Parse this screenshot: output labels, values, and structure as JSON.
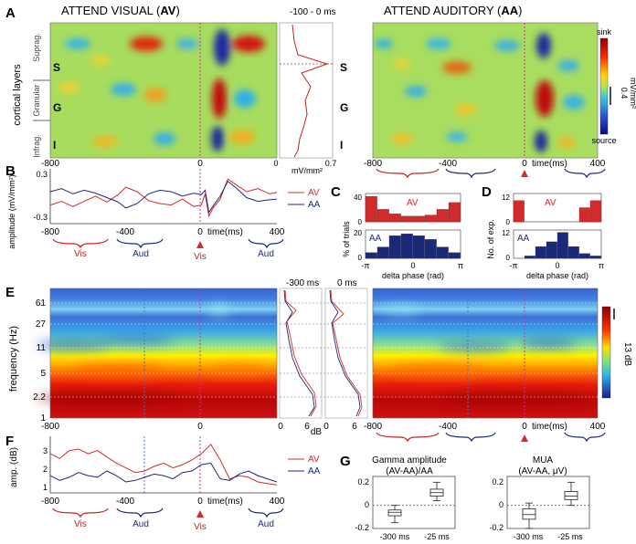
{
  "panel_letters": [
    "A",
    "B",
    "C",
    "D",
    "E",
    "F",
    "G"
  ],
  "panel_a": {
    "title_left_prefix": "ATTEND VISUAL (",
    "title_left_bold": "AV",
    "title_left_suffix": ")",
    "title_right_prefix": "ATTEND AUDITORY (",
    "title_right_bold": "AA",
    "title_right_suffix": ")",
    "window_label": "-100 - 0 ms",
    "y_axis_label": "cortical layers",
    "layer_names": [
      "Suprag.",
      "Granular",
      "Infrag."
    ],
    "layer_letters": [
      "S",
      "G",
      "I"
    ],
    "profile_ticks": [
      "0",
      "0.7"
    ],
    "profile_unit": "mV/mm²",
    "colorbar_top": "sink",
    "colorbar_bottom": "source",
    "colorbar_value": "0.4",
    "colorbar_unit": "mV/mm²",
    "x_ticks": [
      "-800",
      "-400",
      "0",
      "400"
    ],
    "x_unit": "time(ms)"
  },
  "panel_b": {
    "y_label": "amplitude (mV/mm²)",
    "y_ticks": [
      "0.3",
      "-0.3"
    ],
    "x_ticks": [
      "-800",
      "-400",
      "0",
      "400"
    ],
    "x_unit": "time(ms)",
    "brackets": [
      "Vis",
      "Aud",
      "Vis",
      "Aud"
    ],
    "legend": [
      "AV",
      "AA"
    ]
  },
  "panel_c": {
    "y_label": "% of trials",
    "top_label": "AV",
    "bottom_label": "AA",
    "y_ticks_top": [
      "40",
      "0"
    ],
    "y_ticks_bottom": [
      "20",
      "0"
    ],
    "x_ticks": [
      "-π",
      "0",
      "π"
    ],
    "x_label": "delta phase (rad)"
  },
  "panel_d": {
    "y_label": "No. of exp.",
    "top_label": "AV",
    "bottom_label": "AA",
    "y_ticks_top": [
      "12",
      "0"
    ],
    "y_ticks_bottom": [
      "12",
      "0"
    ],
    "x_ticks": [
      "-π",
      "0",
      "π"
    ],
    "x_label": "delta phase (rad)"
  },
  "panel_e": {
    "y_label": "frequency (Hz)",
    "y_ticks": [
      "61",
      "27",
      "11",
      "5",
      "2.2",
      "1"
    ],
    "spectrum_windows": [
      "-300 ms",
      "0 ms"
    ],
    "spectrum_ticks": [
      "0",
      "6",
      "0",
      "6"
    ],
    "spectrum_unit": "dB",
    "colorbar_value": "13 dB",
    "x_ticks": [
      "-800",
      "-400",
      "0",
      "400"
    ],
    "x_unit": "time(ms)"
  },
  "panel_f": {
    "y_label": "amp. (dB)",
    "y_ticks": [
      "3",
      "2",
      "1"
    ],
    "x_ticks": [
      "-800",
      "-400",
      "0",
      "400"
    ],
    "x_unit": "time(ms)",
    "brackets": [
      "Vis",
      "Aud",
      "Vis",
      "Aud"
    ],
    "legend": [
      "AV",
      "AA"
    ]
  },
  "panel_g": {
    "gamma_title": [
      "Gamma amplitude",
      "(AV-AA)/AA"
    ],
    "mua_title": [
      "MUA",
      "(AV-AA, μV)"
    ],
    "y_ticks": [
      "0.2",
      "0",
      "-0.2"
    ],
    "x_ticks": [
      "-300 ms",
      "-25 ms"
    ]
  },
  "colors": {
    "av": "#d22b2b",
    "aa": "#1b2a78",
    "stim": "#cc3399",
    "dotted": "#4477bb"
  },
  "chart_data": [
    {
      "type": "line",
      "panel": "B",
      "xlabel": "time(ms)",
      "ylabel": "amplitude (mV/mm²)",
      "xlim": [
        -800,
        400
      ],
      "ylim": [
        -0.35,
        0.35
      ],
      "series": [
        {
          "name": "AV",
          "x": [
            -800,
            -740,
            -680,
            -620,
            -560,
            -500,
            -440,
            -400,
            -340,
            -280,
            -220,
            -160,
            -100,
            -40,
            0,
            20,
            40,
            60,
            100,
            140,
            180,
            240,
            300,
            360,
            400
          ],
          "values": [
            -0.1,
            -0.05,
            -0.12,
            -0.05,
            0.02,
            -0.06,
            0.04,
            0.14,
            0.08,
            -0.04,
            -0.08,
            -0.1,
            -0.02,
            -0.12,
            -0.1,
            0.05,
            -0.25,
            -0.15,
            -0.02,
            0.25,
            0.18,
            0.08,
            0.12,
            0.05,
            0.07
          ]
        },
        {
          "name": "AA",
          "x": [
            -800,
            -740,
            -680,
            -620,
            -560,
            -500,
            -440,
            -400,
            -340,
            -280,
            -220,
            -160,
            -100,
            -40,
            0,
            20,
            40,
            60,
            100,
            140,
            180,
            240,
            300,
            360,
            400
          ],
          "values": [
            0.08,
            0.12,
            0.05,
            0.1,
            0.06,
            0.0,
            -0.06,
            -0.14,
            -0.08,
            0.05,
            0.1,
            0.08,
            0.02,
            0.06,
            0.04,
            0.1,
            -0.2,
            -0.12,
            0.02,
            0.22,
            0.14,
            0.0,
            -0.05,
            -0.03,
            -0.02
          ]
        }
      ]
    },
    {
      "type": "bar",
      "panel": "C",
      "xlabel": "delta phase (rad)",
      "ylabel": "% of trials",
      "categories": [
        "b1",
        "b2",
        "b3",
        "b4",
        "b5",
        "b6",
        "b7",
        "b8"
      ],
      "series": [
        {
          "name": "AV",
          "values": [
            45,
            22,
            14,
            10,
            10,
            12,
            22,
            34
          ],
          "ylim": [
            0,
            50
          ]
        },
        {
          "name": "AA",
          "values": [
            6,
            12,
            24,
            26,
            24,
            20,
            12,
            6
          ],
          "ylim": [
            0,
            30
          ]
        }
      ]
    },
    {
      "type": "bar",
      "panel": "D",
      "xlabel": "delta phase (rad)",
      "ylabel": "No. of exp.",
      "categories": [
        "b1",
        "b2",
        "b3",
        "b4",
        "b5",
        "b6",
        "b7",
        "b8"
      ],
      "series": [
        {
          "name": "AV",
          "values": [
            9,
            0,
            0,
            0,
            0,
            0,
            6,
            9
          ],
          "ylim": [
            0,
            12
          ]
        },
        {
          "name": "AA",
          "values": [
            0,
            1,
            5,
            7,
            11,
            5,
            2,
            1
          ],
          "ylim": [
            0,
            12
          ]
        }
      ]
    },
    {
      "type": "line",
      "panel": "F",
      "xlabel": "time(ms)",
      "ylabel": "amp. (dB)",
      "xlim": [
        -800,
        400
      ],
      "ylim": [
        0.5,
        4
      ],
      "series": [
        {
          "name": "AV",
          "x": [
            -800,
            -750,
            -700,
            -650,
            -600,
            -550,
            -500,
            -450,
            -400,
            -350,
            -300,
            -250,
            -200,
            -150,
            -100,
            -50,
            0,
            50,
            100,
            150,
            200,
            250,
            300,
            350,
            400
          ],
          "values": [
            3.0,
            2.7,
            3.2,
            3.3,
            3.0,
            3.2,
            2.8,
            2.4,
            2.1,
            1.8,
            1.9,
            2.2,
            2.4,
            2.1,
            2.3,
            2.6,
            3.0,
            3.6,
            2.6,
            1.4,
            1.6,
            1.5,
            1.2,
            1.1,
            1.0
          ]
        },
        {
          "name": "AA",
          "x": [
            -800,
            -750,
            -700,
            -650,
            -600,
            -550,
            -500,
            -450,
            -400,
            -350,
            -300,
            -250,
            -200,
            -150,
            -100,
            -50,
            0,
            50,
            100,
            150,
            200,
            250,
            300,
            350,
            400
          ],
          "values": [
            1.6,
            1.3,
            1.5,
            1.8,
            1.6,
            1.5,
            1.9,
            1.6,
            1.2,
            1.3,
            1.5,
            1.7,
            1.6,
            1.4,
            1.8,
            1.9,
            2.3,
            2.4,
            1.4,
            1.3,
            1.7,
            1.9,
            1.6,
            1.4,
            1.2
          ]
        }
      ]
    },
    {
      "type": "box",
      "panel": "G",
      "categories": [
        "-300 ms",
        "-25 ms"
      ],
      "ylim": [
        -0.2,
        0.25
      ],
      "series": [
        {
          "name": "Gamma amplitude",
          "boxes": [
            {
              "min": -0.15,
              "q1": -0.09,
              "median": -0.06,
              "q3": -0.04,
              "max": 0.0
            },
            {
              "min": 0.04,
              "q1": 0.08,
              "median": 0.11,
              "q3": 0.14,
              "max": 0.2
            }
          ]
        },
        {
          "name": "MUA",
          "boxes": [
            {
              "min": -0.2,
              "q1": -0.12,
              "median": -0.08,
              "q3": -0.03,
              "max": 0.02
            },
            {
              "min": 0.0,
              "q1": 0.05,
              "median": 0.08,
              "q3": 0.12,
              "max": 0.2
            }
          ]
        }
      ]
    }
  ]
}
